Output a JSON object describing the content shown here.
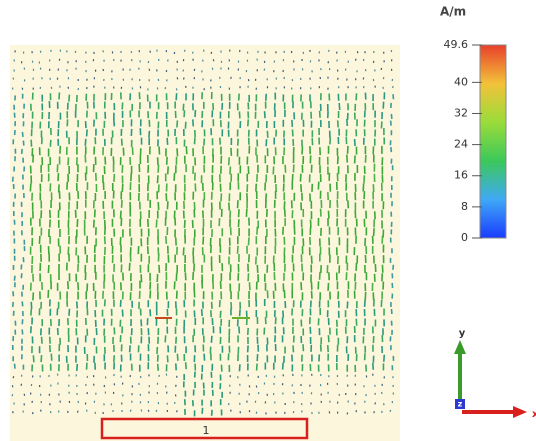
{
  "colorbar": {
    "unit": "A/m",
    "ticks": [
      0,
      8,
      16,
      24,
      32,
      40,
      49.6
    ]
  },
  "axes": {
    "y": "y",
    "z": "z",
    "x": "x"
  },
  "port": "1"
}
